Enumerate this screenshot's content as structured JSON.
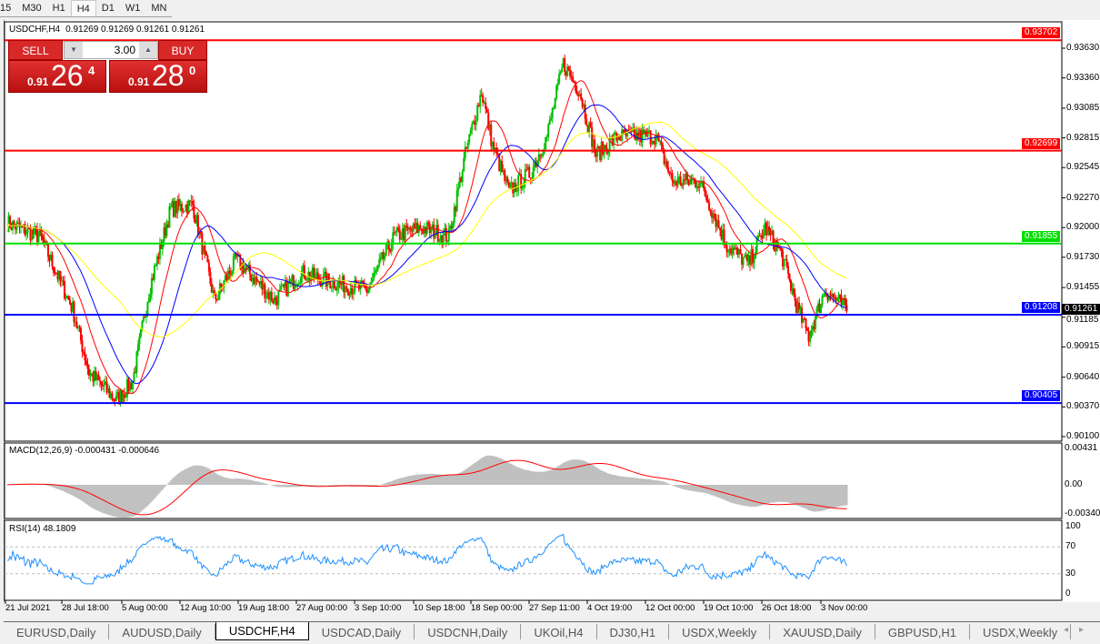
{
  "timeframes": [
    "15",
    "M30",
    "H1",
    "H4",
    "D1",
    "W1",
    "MN"
  ],
  "active_timeframe": "H4",
  "chart": {
    "symbol_title": "USDCHF,H4",
    "ohlc": "0.91269 0.91269 0.91261 0.91261"
  },
  "trade_panel": {
    "sell_label": "SELL",
    "buy_label": "BUY",
    "lot": "3.00",
    "sell_prefix": "0.91",
    "sell_big": "26",
    "sell_sup": "4",
    "buy_prefix": "0.91",
    "buy_big": "28",
    "buy_sup": "0"
  },
  "price_axis": [
    "0.93630",
    "0.93360",
    "0.93085",
    "0.92815",
    "0.92545",
    "0.92270",
    "0.92000",
    "0.91730",
    "0.91455",
    "0.91185",
    "0.90915",
    "0.90640",
    "0.90370",
    "0.90100"
  ],
  "hlines": [
    {
      "price": "0.93702",
      "color": "#ff0000"
    },
    {
      "price": "0.92699",
      "color": "#ff0000"
    },
    {
      "price": "0.91855",
      "color": "#00e000"
    },
    {
      "price": "0.91208",
      "color": "#0000ff"
    },
    {
      "price": "0.90405",
      "color": "#0000ff"
    }
  ],
  "current_price": "0.91261",
  "macd": {
    "label": "MACD(12,26,9) -0.000431 -0.000646",
    "axis": [
      "0.00431",
      "0.00",
      "-0.003405"
    ]
  },
  "rsi": {
    "label": "RSI(14) 48.1809",
    "axis": [
      "100",
      "70",
      "30",
      "0"
    ]
  },
  "time_axis": [
    "21 Jul 2021",
    "28 Jul 18:00",
    "5 Aug 00:00",
    "12 Aug 10:00",
    "19 Aug 18:00",
    "27 Aug 00:00",
    "3 Sep 10:00",
    "10 Sep 18:00",
    "18 Sep 00:00",
    "27 Sep 11:00",
    "4 Oct 19:00",
    "12 Oct 00:00",
    "19 Oct 10:00",
    "26 Oct 18:00",
    "3 Nov 00:00"
  ],
  "tabs": [
    "EURUSD,Daily",
    "AUDUSD,Daily",
    "USDCHF,H4",
    "USDCAD,Daily",
    "USDCNH,Daily",
    "UKOil,H4",
    "DJ30,H1",
    "USDX,Weekly",
    "XAUUSD,Daily",
    "GBPUSD,H1",
    "USDX,Weekly"
  ],
  "active_tab": "USDCHF,H4",
  "chart_data": {
    "type": "candlestick",
    "bull_color": "#00c000",
    "bear_color": "#ff0000",
    "ma_colors": [
      "#ff0000",
      "#0000ff",
      "#ffff00"
    ],
    "close_path": [
      [
        0,
        0.9204
      ],
      [
        6,
        0.9192
      ],
      [
        12,
        0.9126
      ],
      [
        15,
        0.9068
      ],
      [
        20,
        0.9043
      ],
      [
        23,
        0.906
      ],
      [
        26,
        0.9143
      ],
      [
        30,
        0.9217
      ],
      [
        34,
        0.9221
      ],
      [
        38,
        0.9134
      ],
      [
        42,
        0.9171
      ],
      [
        49,
        0.9134
      ],
      [
        54,
        0.9159
      ],
      [
        59,
        0.9151
      ],
      [
        66,
        0.9143
      ],
      [
        71,
        0.9192
      ],
      [
        76,
        0.92
      ],
      [
        81,
        0.9192
      ],
      [
        84,
        0.9266
      ],
      [
        87,
        0.9324
      ],
      [
        89,
        0.9275
      ],
      [
        92,
        0.9233
      ],
      [
        96,
        0.925
      ],
      [
        99,
        0.9283
      ],
      [
        102,
        0.9349
      ],
      [
        105,
        0.9324
      ],
      [
        108,
        0.9266
      ],
      [
        112,
        0.9283
      ],
      [
        119,
        0.9283
      ],
      [
        122,
        0.9242
      ],
      [
        127,
        0.9242
      ],
      [
        132,
        0.9184
      ],
      [
        136,
        0.9167
      ],
      [
        139,
        0.92
      ],
      [
        142,
        0.9176
      ],
      [
        145,
        0.9126
      ],
      [
        147,
        0.9101
      ],
      [
        150,
        0.9143
      ],
      [
        154,
        0.9126
      ]
    ]
  }
}
